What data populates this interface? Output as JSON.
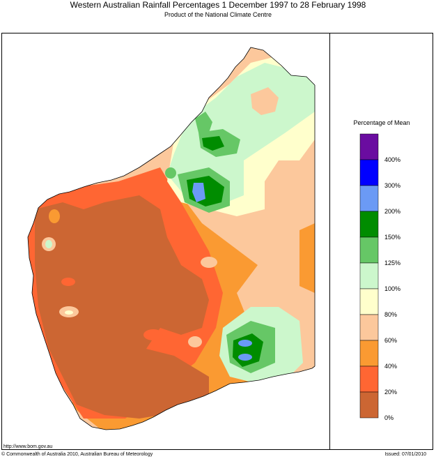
{
  "header": {
    "title": "Western Australian Rainfall Percentages 1 December 1997 to 28 February 1998",
    "subtitle": "Product of the National Climate Centre"
  },
  "legend": {
    "title": "Percentage of Mean",
    "classes": [
      {
        "color": "#6a0ca0"
      },
      {
        "label": "400%",
        "color": "#0000ff"
      },
      {
        "label": "300%",
        "color": "#6b9af5"
      },
      {
        "label": "200%",
        "color": "#008c00"
      },
      {
        "label": "150%",
        "color": "#66c766"
      },
      {
        "label": "125%",
        "color": "#ccf7cc"
      },
      {
        "label": "100%",
        "color": "#ffffcc"
      },
      {
        "label": "80%",
        "color": "#fcc89c"
      },
      {
        "label": "60%",
        "color": "#fa9a32"
      },
      {
        "label": "40%",
        "color": "#ff6633"
      },
      {
        "label": "20%",
        "color": "#cc6633"
      }
    ],
    "bottom_label": "0%"
  },
  "footer": {
    "url": "http://www.bom.gov.au",
    "copyright": "© Commonwealth of Australia 2010, Australian Bureau of Meteorology",
    "issued": "Issued: 07/01/2010"
  }
}
